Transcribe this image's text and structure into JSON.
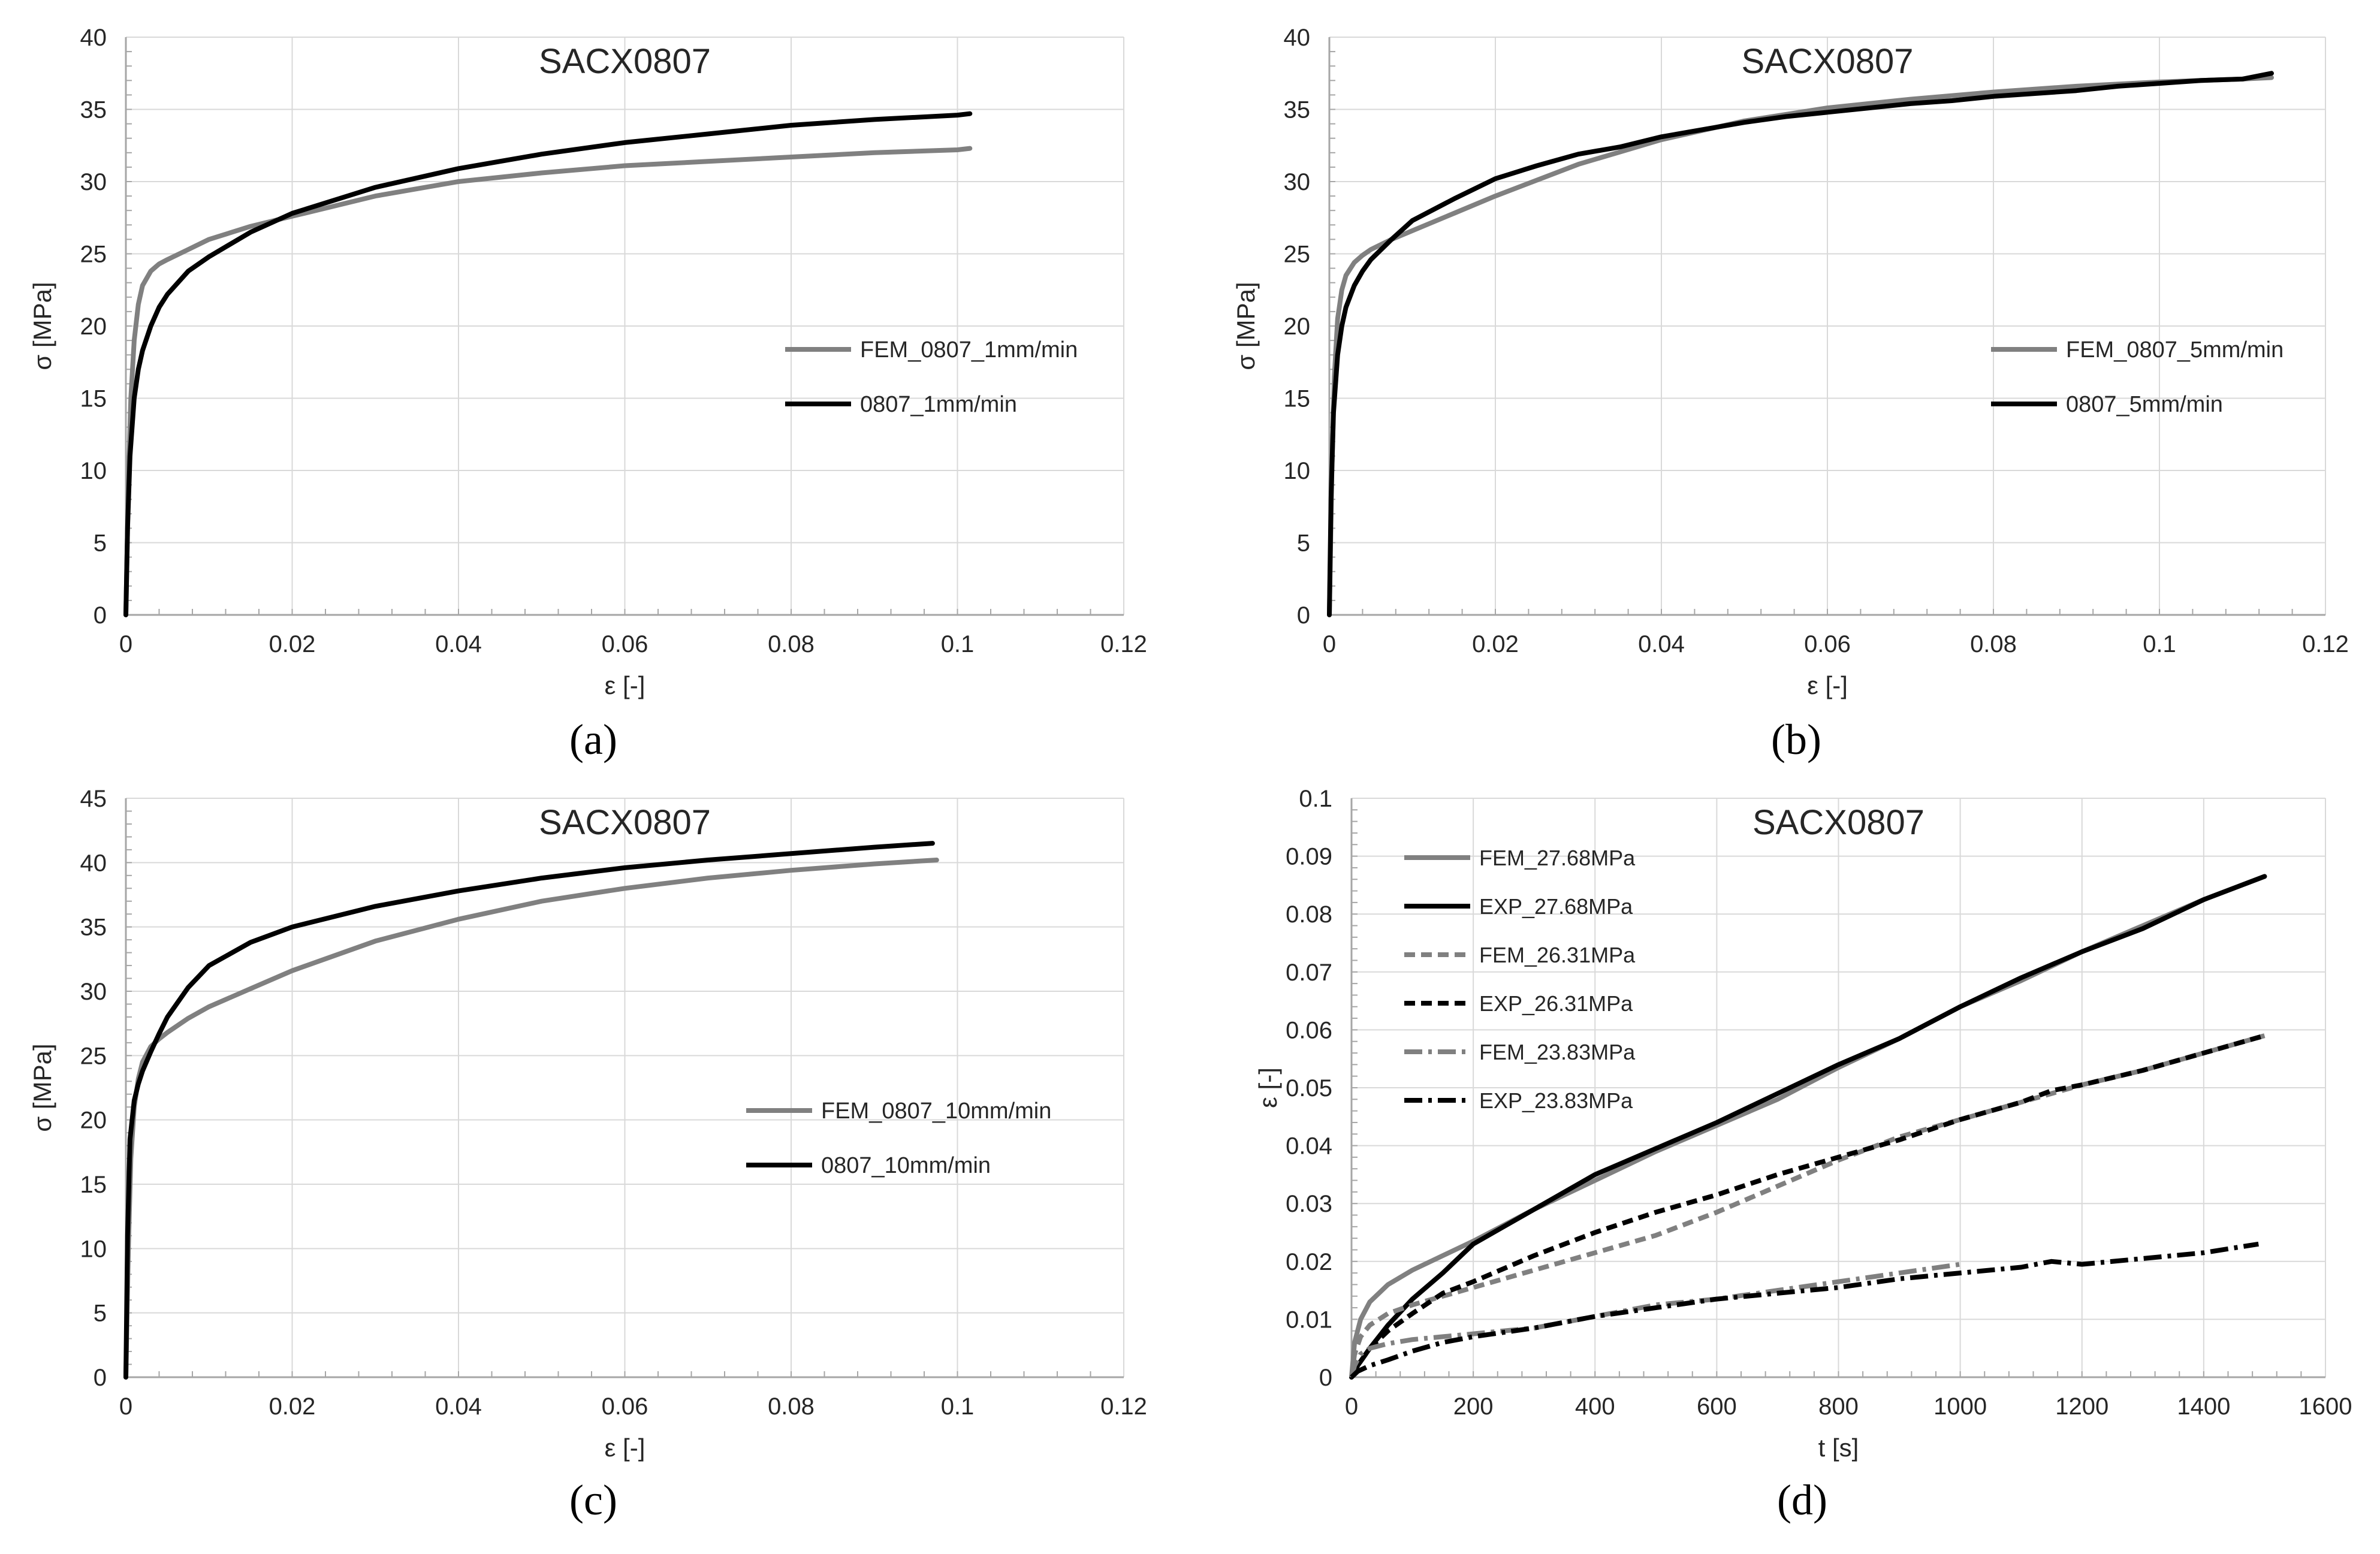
{
  "figure": {
    "panel_labels": [
      "(a)",
      "(b)",
      "(c)",
      "(d)"
    ]
  },
  "colors": {
    "fem": "#808080",
    "exp": "#000000",
    "grid": "#d9d9d9",
    "axis": "#a6a6a6",
    "text": "#262626"
  },
  "chart_data": [
    {
      "type": "line",
      "title": "SACX0807",
      "xlabel": "ε [-]",
      "ylabel": "σ [MPa]",
      "xlim": [
        0,
        0.12
      ],
      "ylim": [
        0,
        40
      ],
      "xticks": [
        0,
        0.02,
        0.04,
        0.06,
        0.08,
        0.1,
        0.12
      ],
      "xtick_labels": [
        "0",
        "0.02",
        "0.04",
        "0.06",
        "0.08",
        "0.1",
        "0.12"
      ],
      "yticks": [
        0,
        5,
        10,
        15,
        20,
        25,
        30,
        35,
        40
      ],
      "ytick_labels": [
        "0",
        "5",
        "10",
        "15",
        "20",
        "25",
        "30",
        "35",
        "40"
      ],
      "grid": true,
      "legend": "center-right",
      "series": [
        {
          "name": "FEM_0807_1mm/min",
          "color": "#808080",
          "dash": "solid",
          "x": [
            0,
            0.0003,
            0.0006,
            0.001,
            0.0015,
            0.002,
            0.003,
            0.004,
            0.005,
            0.0075,
            0.01,
            0.015,
            0.02,
            0.03,
            0.04,
            0.05,
            0.06,
            0.07,
            0.08,
            0.09,
            0.1,
            0.1015
          ],
          "y": [
            0,
            9,
            15,
            19,
            21.5,
            22.8,
            23.8,
            24.3,
            24.6,
            25.3,
            26,
            26.9,
            27.6,
            29,
            30,
            30.6,
            31.1,
            31.4,
            31.7,
            32,
            32.2,
            32.3
          ]
        },
        {
          "name": "0807_1mm/min",
          "color": "#000000",
          "dash": "solid",
          "x": [
            0,
            0.0002,
            0.0005,
            0.001,
            0.0015,
            0.002,
            0.003,
            0.004,
            0.005,
            0.0075,
            0.01,
            0.015,
            0.02,
            0.03,
            0.04,
            0.05,
            0.06,
            0.07,
            0.08,
            0.09,
            0.1,
            0.1015
          ],
          "y": [
            0,
            6,
            11,
            15,
            17,
            18.3,
            20,
            21.3,
            22.2,
            23.8,
            24.8,
            26.5,
            27.8,
            29.6,
            30.9,
            31.9,
            32.7,
            33.3,
            33.9,
            34.3,
            34.6,
            34.7
          ]
        }
      ]
    },
    {
      "type": "line",
      "title": "SACX0807",
      "xlabel": "ε [-]",
      "ylabel": "σ [MPa]",
      "xlim": [
        0,
        0.12
      ],
      "ylim": [
        0,
        40
      ],
      "xticks": [
        0,
        0.02,
        0.04,
        0.06,
        0.08,
        0.1,
        0.12
      ],
      "xtick_labels": [
        "0",
        "0.02",
        "0.04",
        "0.06",
        "0.08",
        "0.1",
        "0.12"
      ],
      "yticks": [
        0,
        5,
        10,
        15,
        20,
        25,
        30,
        35,
        40
      ],
      "ytick_labels": [
        "0",
        "5",
        "10",
        "15",
        "20",
        "25",
        "30",
        "35",
        "40"
      ],
      "grid": true,
      "legend": "center-right",
      "series": [
        {
          "name": "FEM_0807_5mm/min",
          "color": "#808080",
          "dash": "solid",
          "x": [
            0,
            0.0003,
            0.0006,
            0.001,
            0.0015,
            0.002,
            0.003,
            0.004,
            0.005,
            0.0075,
            0.01,
            0.015,
            0.02,
            0.03,
            0.04,
            0.05,
            0.06,
            0.07,
            0.08,
            0.09,
            0.1,
            0.11,
            0.1135
          ],
          "y": [
            0,
            10,
            16.5,
            20.5,
            22.5,
            23.5,
            24.4,
            24.9,
            25.3,
            26,
            26.6,
            27.8,
            29,
            31.2,
            32.9,
            34.2,
            35.1,
            35.7,
            36.2,
            36.6,
            36.9,
            37.1,
            37.2
          ]
        },
        {
          "name": "0807_5mm/min",
          "color": "#000000",
          "dash": "solid",
          "x": [
            0,
            0.0002,
            0.0005,
            0.001,
            0.0015,
            0.002,
            0.003,
            0.004,
            0.005,
            0.0075,
            0.01,
            0.015,
            0.02,
            0.025,
            0.03,
            0.035,
            0.04,
            0.045,
            0.05,
            0.055,
            0.06,
            0.065,
            0.07,
            0.075,
            0.08,
            0.085,
            0.09,
            0.095,
            0.1,
            0.105,
            0.11,
            0.1135
          ],
          "y": [
            0,
            8,
            14,
            18,
            20,
            21.3,
            22.8,
            23.8,
            24.6,
            26,
            27.3,
            28.8,
            30.2,
            31.1,
            31.9,
            32.4,
            33.1,
            33.6,
            34.1,
            34.5,
            34.8,
            35.1,
            35.4,
            35.6,
            35.9,
            36.1,
            36.3,
            36.6,
            36.8,
            37,
            37.1,
            37.5
          ]
        }
      ]
    },
    {
      "type": "line",
      "title": "SACX0807",
      "xlabel": "ε [-]",
      "ylabel": "σ [MPa]",
      "xlim": [
        0,
        0.12
      ],
      "ylim": [
        0,
        45
      ],
      "xticks": [
        0,
        0.02,
        0.04,
        0.06,
        0.08,
        0.1,
        0.12
      ],
      "xtick_labels": [
        "0",
        "0.02",
        "0.04",
        "0.06",
        "0.08",
        "0.1",
        "0.12"
      ],
      "yticks": [
        0,
        5,
        10,
        15,
        20,
        25,
        30,
        35,
        40,
        45
      ],
      "ytick_labels": [
        "0",
        "5",
        "10",
        "15",
        "20",
        "25",
        "30",
        "35",
        "40",
        "45"
      ],
      "grid": true,
      "legend": "center-right",
      "series": [
        {
          "name": "FEM_0807_10mm/min",
          "color": "#808080",
          "dash": "solid",
          "x": [
            0,
            0.0003,
            0.0006,
            0.001,
            0.0015,
            0.002,
            0.003,
            0.004,
            0.005,
            0.0075,
            0.01,
            0.015,
            0.02,
            0.03,
            0.04,
            0.05,
            0.06,
            0.07,
            0.08,
            0.09,
            0.0975
          ],
          "y": [
            0,
            10,
            17,
            21,
            23.2,
            24.5,
            25.7,
            26.3,
            26.8,
            27.9,
            28.8,
            30.2,
            31.6,
            33.9,
            35.6,
            37,
            38,
            38.8,
            39.4,
            39.9,
            40.2
          ]
        },
        {
          "name": "0807_10mm/min",
          "color": "#000000",
          "dash": "solid",
          "x": [
            0,
            0.0002,
            0.0005,
            0.001,
            0.0015,
            0.002,
            0.003,
            0.004,
            0.005,
            0.0075,
            0.01,
            0.015,
            0.02,
            0.03,
            0.04,
            0.05,
            0.06,
            0.07,
            0.08,
            0.09,
            0.097
          ],
          "y": [
            0,
            11,
            18.5,
            21.5,
            22.8,
            23.8,
            25.3,
            26.7,
            28,
            30.3,
            32,
            33.8,
            35,
            36.6,
            37.8,
            38.8,
            39.6,
            40.2,
            40.7,
            41.2,
            41.5
          ]
        }
      ]
    },
    {
      "type": "line",
      "title": "SACX0807",
      "xlabel": "t [s]",
      "ylabel": "ε [-]",
      "xlim": [
        0,
        1600
      ],
      "ylim": [
        0,
        0.1
      ],
      "xticks": [
        0,
        200,
        400,
        600,
        800,
        1000,
        1200,
        1400,
        1600
      ],
      "xtick_labels": [
        "0",
        "200",
        "400",
        "600",
        "800",
        "1000",
        "1200",
        "1400",
        "1600"
      ],
      "yticks": [
        0,
        0.01,
        0.02,
        0.03,
        0.04,
        0.05,
        0.06,
        0.07,
        0.08,
        0.09,
        0.1
      ],
      "ytick_labels": [
        "0",
        "0.01",
        "0.02",
        "0.03",
        "0.04",
        "0.05",
        "0.06",
        "0.07",
        "0.08",
        "0.09",
        "0.1"
      ],
      "grid": true,
      "legend": "top-left",
      "series": [
        {
          "name": "FEM_27.68MPa",
          "color": "#808080",
          "dash": "solid",
          "x": [
            0,
            5,
            15,
            30,
            60,
            100,
            150,
            200,
            300,
            400,
            500,
            600,
            700,
            800,
            900,
            1000,
            1100,
            1200,
            1300,
            1400,
            1500
          ],
          "y": [
            0,
            0.006,
            0.01,
            0.013,
            0.016,
            0.0185,
            0.021,
            0.0235,
            0.029,
            0.034,
            0.039,
            0.0435,
            0.048,
            0.0535,
            0.0585,
            0.064,
            0.0685,
            0.0735,
            0.078,
            0.0825,
            0.0865
          ]
        },
        {
          "name": "EXP_27.68MPa",
          "color": "#000000",
          "dash": "solid",
          "x": [
            0,
            10,
            30,
            60,
            100,
            150,
            200,
            250,
            300,
            400,
            500,
            600,
            700,
            800,
            900,
            1000,
            1100,
            1200,
            1300,
            1400,
            1500
          ],
          "y": [
            0,
            0.002,
            0.005,
            0.009,
            0.0135,
            0.018,
            0.023,
            0.026,
            0.029,
            0.035,
            0.0395,
            0.044,
            0.049,
            0.054,
            0.0585,
            0.064,
            0.069,
            0.0735,
            0.0775,
            0.0825,
            0.0865
          ]
        },
        {
          "name": "FEM_26.31MPa",
          "color": "#808080",
          "dash": "dash",
          "x": [
            0,
            5,
            15,
            30,
            60,
            100,
            150,
            200,
            300,
            400,
            500,
            600,
            700,
            800,
            900,
            1000,
            1100,
            1200,
            1300,
            1400,
            1500
          ],
          "y": [
            0,
            0.004,
            0.007,
            0.009,
            0.011,
            0.0125,
            0.014,
            0.0155,
            0.0185,
            0.0215,
            0.0245,
            0.0285,
            0.033,
            0.0375,
            0.0415,
            0.0445,
            0.0475,
            0.0505,
            0.053,
            0.056,
            0.059
          ]
        },
        {
          "name": "EXP_26.31MPa",
          "color": "#000000",
          "dash": "dash",
          "x": [
            0,
            10,
            30,
            60,
            100,
            150,
            200,
            300,
            400,
            500,
            600,
            700,
            800,
            900,
            1000,
            1100,
            1150,
            1200,
            1300,
            1400,
            1500
          ],
          "y": [
            0,
            0.002,
            0.005,
            0.008,
            0.011,
            0.0145,
            0.0165,
            0.021,
            0.025,
            0.0285,
            0.0315,
            0.035,
            0.038,
            0.041,
            0.0445,
            0.0475,
            0.0495,
            0.0505,
            0.053,
            0.056,
            0.059
          ]
        },
        {
          "name": "FEM_23.83MPa",
          "color": "#808080",
          "dash": "dashdot",
          "x": [
            0,
            5,
            15,
            30,
            60,
            100,
            150,
            200,
            300,
            400,
            500,
            600,
            700,
            800,
            900,
            1000
          ],
          "y": [
            0,
            0.002,
            0.004,
            0.005,
            0.0058,
            0.0065,
            0.007,
            0.0075,
            0.0085,
            0.0105,
            0.0125,
            0.0135,
            0.015,
            0.0165,
            0.018,
            0.0195
          ]
        },
        {
          "name": "EXP_23.83MPa",
          "color": "#000000",
          "dash": "dashdot",
          "x": [
            0,
            10,
            30,
            60,
            100,
            150,
            200,
            300,
            400,
            500,
            600,
            700,
            800,
            900,
            1000,
            1100,
            1150,
            1200,
            1300,
            1400,
            1490
          ],
          "y": [
            0,
            0.001,
            0.002,
            0.003,
            0.0045,
            0.006,
            0.007,
            0.0085,
            0.0105,
            0.012,
            0.0135,
            0.0145,
            0.0155,
            0.017,
            0.018,
            0.019,
            0.02,
            0.0195,
            0.0205,
            0.0215,
            0.023
          ]
        }
      ]
    }
  ]
}
